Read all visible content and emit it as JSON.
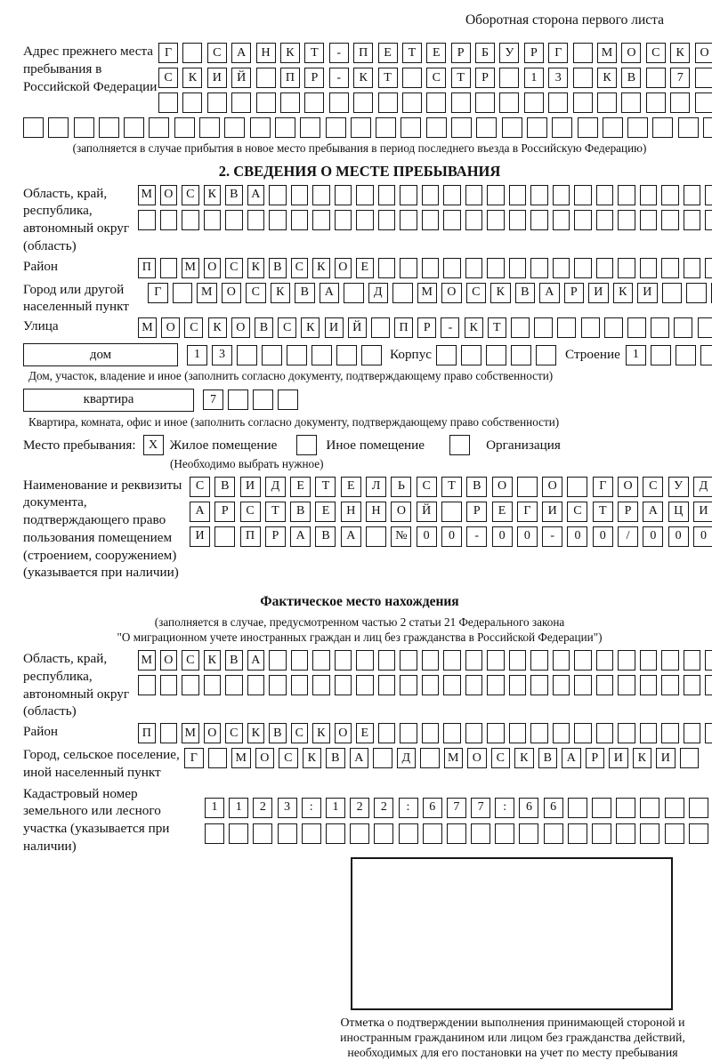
{
  "page_header": "Оборотная сторона первого листа",
  "colors": {
    "ink": "#161616",
    "page": "#ffffff"
  },
  "prev_address": {
    "label": "Адрес прежнего места пребывания в Российской Федерации",
    "rows": [
      {
        "chars": "Г САНКТ-ПЕТЕРБУРГ МОСКОВ",
        "len": 24
      },
      {
        "chars": "СКИЙ ПР-КТ СТР 13 КВ 7",
        "len": 24
      },
      {
        "chars": "",
        "len": 24
      }
    ],
    "extra_row": {
      "chars": "",
      "len": 29
    },
    "caption": "(заполняется в случае прибытия в новое место пребывания в период последнего въезда в Российскую Федерацию)"
  },
  "section2": {
    "title": "2. СВЕДЕНИЯ О МЕСТЕ ПРЕБЫВАНИЯ",
    "region": {
      "label": "Область, край, республика, автономный округ (область)",
      "rows": [
        {
          "chars": "МОСКВА",
          "len": 28
        },
        {
          "chars": "",
          "len": 28
        }
      ]
    },
    "district": {
      "label": "Район",
      "row": {
        "chars": "П МОСКВСКОЕ",
        "len": 28
      }
    },
    "city": {
      "label": "Город или другой населенный пункт",
      "row": {
        "chars": "Г МОСКВА Д МОСКВАРИКИ",
        "len": 24
      }
    },
    "street": {
      "label": "Улица",
      "row": {
        "chars": "МОСКОВСКИЙ ПР-КТ",
        "len": 26
      }
    },
    "house": {
      "type_label": "дом",
      "number": {
        "chars": "13",
        "len": 8
      },
      "korpus_label": "Корпус",
      "korpus": {
        "chars": "",
        "len": 5
      },
      "stroenie_label": "Строение",
      "stroenie": {
        "chars": "1",
        "len": 4
      },
      "caption": "Дом, участок, владение и иное (заполнить согласно документу, подтверждающему право собственности)"
    },
    "apartment": {
      "type_label": "квартира",
      "number": {
        "chars": "7",
        "len": 4
      },
      "caption": "Квартира, комната, офис и иное (заполнить согласно документу, подтверждающему право собственности)"
    },
    "stay_type": {
      "label": "Место пребывания:",
      "options": [
        {
          "label": "Жилое помещение",
          "mark": "X"
        },
        {
          "label": "Иное помещение",
          "mark": ""
        },
        {
          "label": "Организация",
          "mark": ""
        }
      ],
      "caption": "(Необходимо выбрать нужное)"
    },
    "document": {
      "label": "Наименование и реквизиты документа, подтверждающего право пользования помещением (строением, сооружением) (указывается при наличии)",
      "rows": [
        {
          "chars": "СВИДЕТЕЛЬСТВО О ГОСУД",
          "len": 21
        },
        {
          "chars": "АРСТВЕННОЙ РЕГИСТРАЦИ",
          "len": 21
        },
        {
          "chars": "И ПРАВА №00-00-00/000",
          "len": 21
        }
      ]
    }
  },
  "actual_location": {
    "title": "Фактическое место нахождения",
    "caption_line1": "(заполняется в случае, предусмотренном частью 2 статьи 21 Федерального закона",
    "caption_line2": "\"О миграционном учете иностранных граждан и лиц без гражданства в Российской Федерации\")",
    "region": {
      "label": "Область, край, республика, автономный округ (область)",
      "rows": [
        {
          "chars": "МОСКВА",
          "len": 28
        },
        {
          "chars": "",
          "len": 28
        }
      ]
    },
    "district": {
      "label": "Район",
      "row": {
        "chars": "П МОСКВСКОЕ",
        "len": 28
      }
    },
    "city": {
      "label": "Город, сельское поселение, иной населенный пункт",
      "row": {
        "chars": "Г МОСКВА Д МОСКВАРИКИ",
        "len": 22
      }
    },
    "cadastral": {
      "label": "Кадастровый номер земельного или лесного участка (указывается при наличии)",
      "rows": [
        {
          "chars": "1123:122:677:66",
          "len": 22
        },
        {
          "chars": "",
          "len": 22
        }
      ]
    },
    "stamp_caption": "Отметка о подтверждении выполнения принимающей стороной и иностранным гражданином или лицом без гражданства действий, необходимых для его постановки на учет по месту пребывания"
  }
}
